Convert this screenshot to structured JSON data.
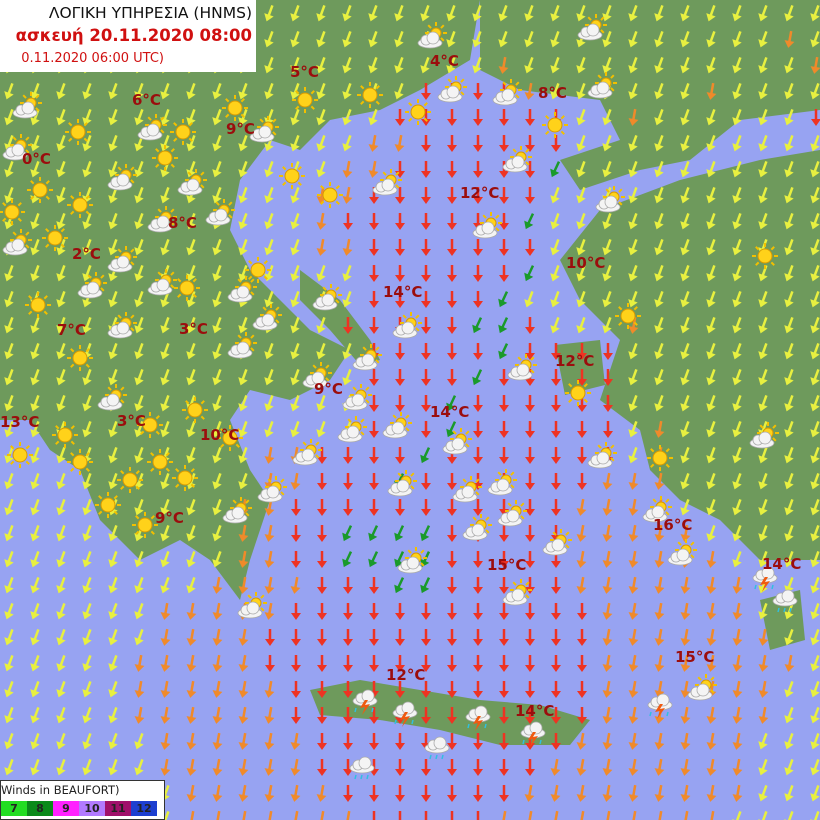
{
  "header": {
    "agency": "ΛΟΓΙΚΗ ΥΠΗΡΕΣΙΑ (HNMS)",
    "valid_time": "ασκευή 20.11.2020 08:00",
    "run_time": "0.11.2020 06:00 UTC)"
  },
  "legend": {
    "title": "Winds in BEAUFORT)",
    "items": [
      {
        "label": "7",
        "color": "#22dd22"
      },
      {
        "label": "8",
        "color": "#0a8a1a"
      },
      {
        "label": "9",
        "color": "#ff22ff"
      },
      {
        "label": "10",
        "color": "#b27aff"
      },
      {
        "label": "11",
        "color": "#a0106a"
      },
      {
        "label": "12",
        "color": "#1d3fd0"
      }
    ]
  },
  "colors": {
    "sea": "#97a3f2",
    "land": "#6e9a5c",
    "temp_text": "#9b0d0d",
    "arrow_yellow": "#e8f040",
    "arrow_orange": "#f08a2a",
    "arrow_red": "#ee3322",
    "arrow_green": "#1a9a2a"
  },
  "temperatures": [
    "4°C",
    "5°C",
    "6°C",
    "8°C",
    "9°C",
    "0°C",
    "12°C",
    "8°C",
    "2°C",
    "10°C",
    "14°C",
    "7°C",
    "3°C",
    "12°C",
    "9°C",
    "14°C",
    "13°C",
    "3°C",
    "10°C",
    "9°C",
    "16°C",
    "15°C",
    "14°C",
    "15°C",
    "12°C",
    "14°C"
  ],
  "wind_grid": [
    "yyyyyyyyyyyyyyyyyyyyyyyyyyyyyyyy",
    "yyyyyyyyyyyyyyyyyyyyyyyyyyyyyyoy",
    "yyyyyyyyyyyyyyyyyyyoyyyyyyyyyyyo",
    "yyyyyyyyyyyyyyyyrrrroyyyyyyoyyyy",
    "yyyyyyyyyyyyyyyrrrrrrryyoyyyyyyr",
    "yyyyyyyyyyyyyyoorrrrrryyyyyyyyyy",
    "yyyyyyyyyyyyyoorrrrrrgyyyyyyyyyy",
    "yyyyyyyyyyyyoorrrrrrryyyyyyyyyyy",
    "yyyyyyyyyyyyorrrrrrrgyyyyyyyyyyy",
    "yyyyyyyyyyyyoorrrrrrryyyyyyyyyyy",
    "yyyyyyyyyyyyyyrrrrrrgyyyyyyyyyyy",
    "yyyyyyyyyyyyyyrrrrrgyyyyyyyyyyyy",
    "yyyyyyyyyyyyyrrrrrggryyyoyyyyyyy",
    "yyyyyyyyyyyyyyrrrrrgrrrryyyyyyyy",
    "yyyyyyyyyyyyyyrrrrgrrrrryyyyyyyy",
    "yyyyyyyyyyyyyyrrrgrrrrrryyyyyyyy",
    "yyyyyyyyyyyyyyrrrgrrrrrryoyyyyyy",
    "yyyyyyyyyyoorrrrgrrrrrrryoyyyyyy",
    "yyyyyyyyyyoorrrgrrrrrrroooyyyyyy",
    "yyyyyyyyyoorrrrrrrrrrrooooyyyyyy",
    "yyyyyyyyyoorrggggrrrrroooooyyyyy",
    "yyyyyyyyyoorrggggrrrrrooooooyyyy",
    "yyyyyyyyoooorrrggrrrrroooooooyyy",
    "yyyyyyooooorrrrrrrrrrrrooooooyyy",
    "yyyyyyoooorrrrrrrrrrrrroooooooyy",
    "yyyyyooooorrrrrrrrrrrrrooooooooy",
    "yyyyyoooooorrrrrrrrrrrroooooooyy",
    "yyyyyoooooorrrrrrrrrrrroooooooyy",
    "yyyyyyoooooorrrrrrrrrroooooooyyy",
    "yyyyyyoooooorrrrrrrrrooooooooyyy",
    "yyyyyyyoooooorrrrrrroooooooooyyy",
    "yyyyyyyooooooorrrrroooooooooyyyy"
  ]
}
